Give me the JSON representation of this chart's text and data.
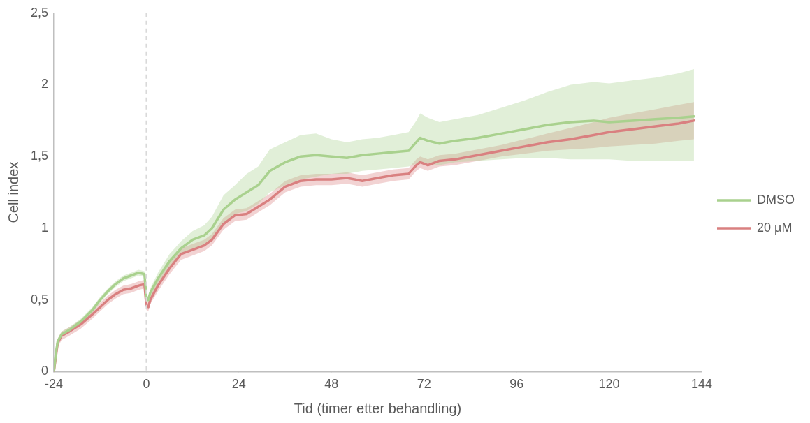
{
  "chart_data": {
    "type": "line",
    "xlabel": "Tid (timer etter behandling)",
    "ylabel": "Cell index",
    "x": [
      -24,
      -23.5,
      -23,
      -22,
      -20,
      -17,
      -14,
      -12,
      -10,
      -8,
      -6,
      -4,
      -2,
      -0.5,
      0,
      0.5,
      1,
      3,
      6,
      9,
      12,
      15,
      17,
      20,
      23,
      26,
      29,
      32,
      36,
      40,
      44,
      48,
      52,
      56,
      60,
      64,
      68,
      70,
      71,
      73,
      76,
      80,
      86,
      92,
      98,
      104,
      110,
      116,
      120,
      126,
      132,
      138,
      142
    ],
    "series": [
      {
        "name": "DMSO",
        "color": "#a9d18e",
        "values": [
          0,
          0.12,
          0.21,
          0.26,
          0.29,
          0.35,
          0.43,
          0.5,
          0.56,
          0.61,
          0.65,
          0.67,
          0.69,
          0.68,
          0.52,
          0.5,
          0.55,
          0.65,
          0.77,
          0.86,
          0.92,
          0.95,
          1.0,
          1.13,
          1.2,
          1.25,
          1.3,
          1.4,
          1.46,
          1.5,
          1.51,
          1.5,
          1.49,
          1.51,
          1.52,
          1.53,
          1.54,
          1.6,
          1.63,
          1.61,
          1.59,
          1.61,
          1.63,
          1.66,
          1.69,
          1.72,
          1.74,
          1.75,
          1.74,
          1.75,
          1.76,
          1.77,
          1.78
        ],
        "lower": [
          0,
          0.1,
          0.19,
          0.24,
          0.27,
          0.33,
          0.41,
          0.48,
          0.54,
          0.59,
          0.63,
          0.65,
          0.67,
          0.66,
          0.5,
          0.48,
          0.52,
          0.61,
          0.72,
          0.81,
          0.86,
          0.88,
          0.92,
          1.03,
          1.1,
          1.12,
          1.17,
          1.25,
          1.3,
          1.34,
          1.36,
          1.38,
          1.38,
          1.4,
          1.41,
          1.42,
          1.43,
          1.45,
          1.46,
          1.45,
          1.44,
          1.46,
          1.47,
          1.48,
          1.49,
          1.49,
          1.48,
          1.48,
          1.48,
          1.47,
          1.47,
          1.47,
          1.47
        ],
        "upper": [
          0,
          0.14,
          0.23,
          0.28,
          0.31,
          0.37,
          0.45,
          0.52,
          0.58,
          0.63,
          0.67,
          0.69,
          0.71,
          0.7,
          0.54,
          0.52,
          0.58,
          0.69,
          0.82,
          0.91,
          0.98,
          1.02,
          1.08,
          1.23,
          1.3,
          1.38,
          1.43,
          1.55,
          1.6,
          1.65,
          1.66,
          1.62,
          1.6,
          1.62,
          1.63,
          1.65,
          1.67,
          1.75,
          1.8,
          1.77,
          1.74,
          1.76,
          1.79,
          1.84,
          1.89,
          1.95,
          2.0,
          2.02,
          2.01,
          2.03,
          2.05,
          2.08,
          2.11
        ]
      },
      {
        "name": "20 µM",
        "color": "#d98080",
        "values": [
          0,
          0.1,
          0.2,
          0.25,
          0.28,
          0.33,
          0.4,
          0.45,
          0.5,
          0.54,
          0.57,
          0.58,
          0.6,
          0.61,
          0.46,
          0.45,
          0.5,
          0.6,
          0.72,
          0.82,
          0.85,
          0.88,
          0.92,
          1.03,
          1.09,
          1.1,
          1.15,
          1.2,
          1.29,
          1.33,
          1.34,
          1.34,
          1.35,
          1.33,
          1.35,
          1.37,
          1.38,
          1.44,
          1.46,
          1.44,
          1.47,
          1.48,
          1.51,
          1.54,
          1.57,
          1.6,
          1.62,
          1.65,
          1.67,
          1.69,
          1.71,
          1.73,
          1.75
        ],
        "lower": [
          0,
          0.08,
          0.17,
          0.22,
          0.25,
          0.3,
          0.37,
          0.42,
          0.47,
          0.51,
          0.54,
          0.55,
          0.57,
          0.58,
          0.43,
          0.42,
          0.47,
          0.56,
          0.68,
          0.78,
          0.81,
          0.84,
          0.88,
          0.99,
          1.05,
          1.06,
          1.11,
          1.16,
          1.25,
          1.29,
          1.3,
          1.3,
          1.31,
          1.29,
          1.31,
          1.33,
          1.34,
          1.4,
          1.42,
          1.4,
          1.43,
          1.44,
          1.47,
          1.5,
          1.52,
          1.54,
          1.55,
          1.56,
          1.57,
          1.58,
          1.59,
          1.61,
          1.62
        ],
        "upper": [
          0,
          0.12,
          0.23,
          0.28,
          0.31,
          0.36,
          0.43,
          0.48,
          0.53,
          0.57,
          0.6,
          0.61,
          0.63,
          0.64,
          0.49,
          0.48,
          0.53,
          0.64,
          0.76,
          0.86,
          0.89,
          0.92,
          0.96,
          1.07,
          1.13,
          1.14,
          1.19,
          1.24,
          1.33,
          1.37,
          1.38,
          1.38,
          1.39,
          1.37,
          1.39,
          1.41,
          1.42,
          1.48,
          1.5,
          1.48,
          1.51,
          1.52,
          1.55,
          1.58,
          1.62,
          1.66,
          1.7,
          1.74,
          1.77,
          1.8,
          1.83,
          1.86,
          1.88
        ]
      }
    ],
    "xlim": [
      -24,
      144
    ],
    "xticks": [
      -24,
      0,
      24,
      48,
      72,
      96,
      120,
      144
    ],
    "ylim": [
      0,
      2.5
    ],
    "yticks": [
      0,
      {
        "value": 0.5,
        "label": "0,5"
      },
      1,
      {
        "value": 1.5,
        "label": "1,5"
      },
      2,
      {
        "value": 2.5,
        "label": "2,5"
      }
    ],
    "ref_lines": [
      {
        "axis": "x",
        "value": 0,
        "color": "#d9d9d9",
        "line_style": "dashed"
      }
    ],
    "grid": false,
    "legend": "right",
    "marker": "none",
    "line_style": "solid"
  }
}
